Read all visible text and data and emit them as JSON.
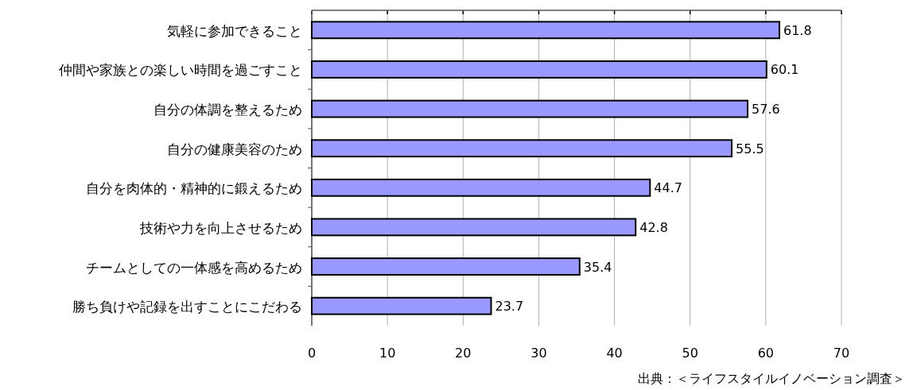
{
  "chart_data": {
    "type": "bar",
    "orientation": "horizontal",
    "categories": [
      "気軽に参加できること",
      "仲間や家族との楽しい時間を過ごすこと",
      "自分の体調を整えるため",
      "自分の健康美容のため",
      "自分を肉体的・精神的に鍛えるため",
      "技術や力を向上させるため",
      "チームとしての一体感を高めるため",
      "勝ち負けや記録を出すことにこだわる"
    ],
    "values": [
      61.8,
      60.1,
      57.6,
      55.5,
      44.7,
      42.8,
      35.4,
      23.7
    ],
    "color": "#9999ff",
    "data_labels": true,
    "xlim": [
      0,
      70
    ],
    "xticks": [
      0,
      10,
      20,
      30,
      40,
      50,
      60,
      70
    ],
    "grid": "x",
    "annotations": [
      "出典：＜ライフスタイルイノベーション調査＞"
    ]
  }
}
